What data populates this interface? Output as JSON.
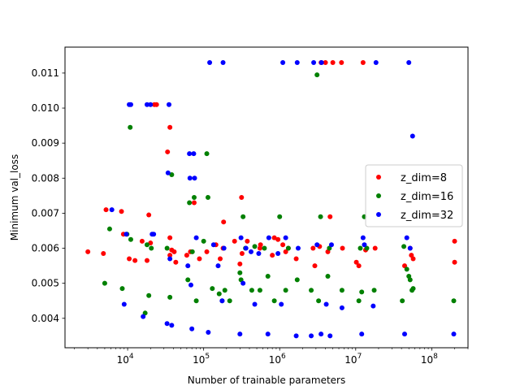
{
  "chart_data": {
    "type": "scatter",
    "x_scale": "log",
    "xlabel": "Number of trainable parameters",
    "ylabel": "Minimum val_loss",
    "xlim": [
      1500,
      300000000
    ],
    "ylim": [
      0.00316,
      0.01174
    ],
    "x_ticks": [
      {
        "value": 10000,
        "label": "10",
        "exp": "4"
      },
      {
        "value": 100000,
        "label": "10",
        "exp": "5"
      },
      {
        "value": 1000000,
        "label": "10",
        "exp": "6"
      },
      {
        "value": 10000000,
        "label": "10",
        "exp": "7"
      },
      {
        "value": 100000000,
        "label": "10",
        "exp": "8"
      }
    ],
    "y_ticks": [
      {
        "value": 0.004,
        "label": "0.004"
      },
      {
        "value": 0.005,
        "label": "0.005"
      },
      {
        "value": 0.006,
        "label": "0.006"
      },
      {
        "value": 0.007,
        "label": "0.007"
      },
      {
        "value": 0.008,
        "label": "0.008"
      },
      {
        "value": 0.009,
        "label": "0.009"
      },
      {
        "value": 0.01,
        "label": "0.010"
      },
      {
        "value": 0.011,
        "label": "0.011"
      }
    ],
    "grid": false,
    "legend_position": "center-right",
    "series": [
      {
        "name": "z_dim=8",
        "color": "#ff0000",
        "points": [
          [
            3000,
            0.0059
          ],
          [
            4800,
            0.00585
          ],
          [
            5200,
            0.0071
          ],
          [
            8300,
            0.00705
          ],
          [
            8800,
            0.0064
          ],
          [
            10500,
            0.0057
          ],
          [
            12500,
            0.00565
          ],
          [
            15500,
            0.0062
          ],
          [
            18000,
            0.00565
          ],
          [
            19000,
            0.00695
          ],
          [
            20000,
            0.00615
          ],
          [
            22500,
            0.0101
          ],
          [
            24000,
            0.0101
          ],
          [
            33500,
            0.00875
          ],
          [
            36000,
            0.00945
          ],
          [
            36000,
            0.0063
          ],
          [
            36000,
            0.0058
          ],
          [
            38000,
            0.00595
          ],
          [
            41000,
            0.0059
          ],
          [
            43000,
            0.0056
          ],
          [
            60000,
            0.0058
          ],
          [
            67000,
            0.0059
          ],
          [
            75000,
            0.0073
          ],
          [
            88000,
            0.0057
          ],
          [
            110000,
            0.0059
          ],
          [
            145000,
            0.0061
          ],
          [
            165000,
            0.0057
          ],
          [
            180000,
            0.006
          ],
          [
            183000,
            0.00675
          ],
          [
            255000,
            0.0062
          ],
          [
            300000,
            0.00555
          ],
          [
            315000,
            0.00745
          ],
          [
            320000,
            0.00585
          ],
          [
            375000,
            0.0062
          ],
          [
            550000,
            0.006
          ],
          [
            560000,
            0.0061
          ],
          [
            800000,
            0.0058
          ],
          [
            850000,
            0.0063
          ],
          [
            950000,
            0.00625
          ],
          [
            1100000,
            0.0061
          ],
          [
            1200000,
            0.0059
          ],
          [
            1300000,
            0.006
          ],
          [
            1650000,
            0.0057
          ],
          [
            2750000,
            0.006
          ],
          [
            2900000,
            0.0055
          ],
          [
            3350000,
            0.00605
          ],
          [
            3500000,
            0.0113
          ],
          [
            4000000,
            0.0113
          ],
          [
            4300000,
            0.0059
          ],
          [
            4600000,
            0.0069
          ],
          [
            5000000,
            0.0113
          ],
          [
            6500000,
            0.0113
          ],
          [
            6700000,
            0.006
          ],
          [
            10200000,
            0.0056
          ],
          [
            11000000,
            0.0055
          ],
          [
            12500000,
            0.0113
          ],
          [
            13500000,
            0.00595
          ],
          [
            18000000,
            0.006
          ],
          [
            44000000,
            0.0055
          ],
          [
            52000000,
            0.006
          ],
          [
            54000000,
            0.0058
          ],
          [
            57000000,
            0.0057
          ],
          [
            200000000,
            0.0062
          ],
          [
            200000000,
            0.0056
          ]
        ]
      },
      {
        "name": "z_dim=16",
        "color": "#008000",
        "points": [
          [
            5000,
            0.005
          ],
          [
            5800,
            0.00655
          ],
          [
            8500,
            0.00485
          ],
          [
            9800,
            0.0064
          ],
          [
            10800,
            0.00945
          ],
          [
            11000,
            0.00625
          ],
          [
            17000,
            0.00415
          ],
          [
            18000,
            0.0061
          ],
          [
            19000,
            0.00465
          ],
          [
            20500,
            0.006
          ],
          [
            33000,
            0.006
          ],
          [
            36000,
            0.0046
          ],
          [
            38000,
            0.0081
          ],
          [
            62000,
            0.0051
          ],
          [
            65000,
            0.0073
          ],
          [
            71000,
            0.0059
          ],
          [
            75000,
            0.00745
          ],
          [
            80000,
            0.0045
          ],
          [
            100000,
            0.0062
          ],
          [
            110000,
            0.0087
          ],
          [
            114000,
            0.00745
          ],
          [
            130000,
            0.00485
          ],
          [
            160000,
            0.0047
          ],
          [
            175000,
            0.0045
          ],
          [
            190000,
            0.0048
          ],
          [
            220000,
            0.0045
          ],
          [
            300000,
            0.0053
          ],
          [
            310000,
            0.0051
          ],
          [
            330000,
            0.0069
          ],
          [
            355000,
            0.006
          ],
          [
            430000,
            0.0048
          ],
          [
            470000,
            0.00605
          ],
          [
            550000,
            0.0048
          ],
          [
            630000,
            0.006
          ],
          [
            700000,
            0.0052
          ],
          [
            850000,
            0.0045
          ],
          [
            1000000,
            0.0069
          ],
          [
            1200000,
            0.0048
          ],
          [
            1300000,
            0.006
          ],
          [
            1700000,
            0.0051
          ],
          [
            2600000,
            0.0048
          ],
          [
            3100000,
            0.01095
          ],
          [
            3250000,
            0.0045
          ],
          [
            3450000,
            0.0069
          ],
          [
            4300000,
            0.0052
          ],
          [
            4500000,
            0.006
          ],
          [
            6600000,
            0.0048
          ],
          [
            11000000,
            0.0045
          ],
          [
            11500000,
            0.006
          ],
          [
            12000000,
            0.00475
          ],
          [
            13000000,
            0.0069
          ],
          [
            14000000,
            0.006
          ],
          [
            17500000,
            0.0048
          ],
          [
            41000000,
            0.0045
          ],
          [
            43000000,
            0.00605
          ],
          [
            47000000,
            0.0054
          ],
          [
            50000000,
            0.0052
          ],
          [
            52000000,
            0.0051
          ],
          [
            55000000,
            0.0048
          ],
          [
            57000000,
            0.00485
          ],
          [
            195000000,
            0.0045
          ]
        ]
      },
      {
        "name": "z_dim=32",
        "color": "#0000ff",
        "points": [
          [
            6200,
            0.0071
          ],
          [
            9000,
            0.0044
          ],
          [
            9600,
            0.0064
          ],
          [
            10500,
            0.0101
          ],
          [
            11000,
            0.0101
          ],
          [
            16000,
            0.00405
          ],
          [
            18000,
            0.0101
          ],
          [
            20000,
            0.0101
          ],
          [
            21000,
            0.0064
          ],
          [
            22000,
            0.0064
          ],
          [
            33000,
            0.00385
          ],
          [
            34000,
            0.00815
          ],
          [
            35000,
            0.0101
          ],
          [
            36000,
            0.0057
          ],
          [
            38000,
            0.0038
          ],
          [
            62000,
            0.0055
          ],
          [
            65000,
            0.0087
          ],
          [
            66000,
            0.008
          ],
          [
            68000,
            0.00495
          ],
          [
            70000,
            0.0037
          ],
          [
            74000,
            0.0087
          ],
          [
            76000,
            0.008
          ],
          [
            80000,
            0.0063
          ],
          [
            115000,
            0.0036
          ],
          [
            120000,
            0.0113
          ],
          [
            135000,
            0.0061
          ],
          [
            155000,
            0.0055
          ],
          [
            175000,
            0.0045
          ],
          [
            180000,
            0.0113
          ],
          [
            185000,
            0.006
          ],
          [
            300000,
            0.00355
          ],
          [
            310000,
            0.0063
          ],
          [
            330000,
            0.005
          ],
          [
            360000,
            0.006
          ],
          [
            420000,
            0.0059
          ],
          [
            470000,
            0.0044
          ],
          [
            530000,
            0.00585
          ],
          [
            700000,
            0.00355
          ],
          [
            720000,
            0.0063
          ],
          [
            950000,
            0.00585
          ],
          [
            1050000,
            0.0044
          ],
          [
            1100000,
            0.0113
          ],
          [
            1200000,
            0.0063
          ],
          [
            1650000,
            0.0035
          ],
          [
            1700000,
            0.0113
          ],
          [
            1750000,
            0.006
          ],
          [
            2600000,
            0.0035
          ],
          [
            2800000,
            0.0113
          ],
          [
            3100000,
            0.0061
          ],
          [
            3500000,
            0.00355
          ],
          [
            3550000,
            0.0113
          ],
          [
            4100000,
            0.0044
          ],
          [
            4600000,
            0.0035
          ],
          [
            4800000,
            0.0061
          ],
          [
            6600000,
            0.0043
          ],
          [
            12000000,
            0.00355
          ],
          [
            12500000,
            0.0063
          ],
          [
            13000000,
            0.0061
          ],
          [
            17000000,
            0.00435
          ],
          [
            18500000,
            0.0113
          ],
          [
            44000000,
            0.00355
          ],
          [
            47000000,
            0.0063
          ],
          [
            50000000,
            0.0113
          ],
          [
            52000000,
            0.006
          ],
          [
            56000000,
            0.0092
          ],
          [
            195000000,
            0.00355
          ]
        ]
      }
    ]
  }
}
